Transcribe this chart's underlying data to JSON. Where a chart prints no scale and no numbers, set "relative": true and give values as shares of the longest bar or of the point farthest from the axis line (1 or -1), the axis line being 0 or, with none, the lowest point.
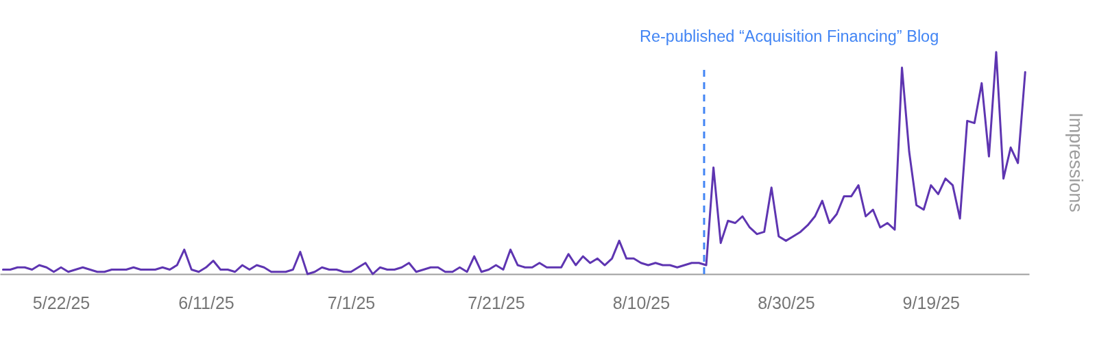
{
  "chart_data": {
    "type": "line",
    "x": [
      "2025-05-14",
      "2025-05-15",
      "2025-05-16",
      "2025-05-17",
      "2025-05-18",
      "2025-05-19",
      "2025-05-20",
      "2025-05-21",
      "2025-05-22",
      "2025-05-23",
      "2025-05-24",
      "2025-05-25",
      "2025-05-26",
      "2025-05-27",
      "2025-05-28",
      "2025-05-29",
      "2025-05-30",
      "2025-05-31",
      "2025-06-01",
      "2025-06-02",
      "2025-06-03",
      "2025-06-04",
      "2025-06-05",
      "2025-06-06",
      "2025-06-07",
      "2025-06-08",
      "2025-06-09",
      "2025-06-10",
      "2025-06-11",
      "2025-06-12",
      "2025-06-13",
      "2025-06-14",
      "2025-06-15",
      "2025-06-16",
      "2025-06-17",
      "2025-06-18",
      "2025-06-19",
      "2025-06-20",
      "2025-06-21",
      "2025-06-22",
      "2025-06-23",
      "2025-06-24",
      "2025-06-25",
      "2025-06-26",
      "2025-06-27",
      "2025-06-28",
      "2025-06-29",
      "2025-06-30",
      "2025-07-01",
      "2025-07-02",
      "2025-07-03",
      "2025-07-04",
      "2025-07-05",
      "2025-07-06",
      "2025-07-07",
      "2025-07-08",
      "2025-07-09",
      "2025-07-10",
      "2025-07-11",
      "2025-07-12",
      "2025-07-13",
      "2025-07-14",
      "2025-07-15",
      "2025-07-16",
      "2025-07-17",
      "2025-07-18",
      "2025-07-19",
      "2025-07-20",
      "2025-07-21",
      "2025-07-22",
      "2025-07-23",
      "2025-07-24",
      "2025-07-25",
      "2025-07-26",
      "2025-07-27",
      "2025-07-28",
      "2025-07-29",
      "2025-07-30",
      "2025-07-31",
      "2025-08-01",
      "2025-08-02",
      "2025-08-03",
      "2025-08-04",
      "2025-08-05",
      "2025-08-06",
      "2025-08-07",
      "2025-08-08",
      "2025-08-09",
      "2025-08-10",
      "2025-08-11",
      "2025-08-12",
      "2025-08-13",
      "2025-08-14",
      "2025-08-15",
      "2025-08-16",
      "2025-08-17",
      "2025-08-18",
      "2025-08-19",
      "2025-08-20",
      "2025-08-21",
      "2025-08-22",
      "2025-08-23",
      "2025-08-24",
      "2025-08-25",
      "2025-08-26",
      "2025-08-27",
      "2025-08-28",
      "2025-08-29",
      "2025-08-30",
      "2025-08-31",
      "2025-09-01",
      "2025-09-02",
      "2025-09-03",
      "2025-09-04",
      "2025-09-05",
      "2025-09-06",
      "2025-09-07",
      "2025-09-08",
      "2025-09-09",
      "2025-09-10",
      "2025-09-11",
      "2025-09-12",
      "2025-09-13",
      "2025-09-14",
      "2025-09-15",
      "2025-09-16",
      "2025-09-17",
      "2025-09-18",
      "2025-09-19",
      "2025-09-20",
      "2025-09-21",
      "2025-09-22",
      "2025-09-23",
      "2025-09-24",
      "2025-09-25",
      "2025-09-26",
      "2025-09-27",
      "2025-09-28",
      "2025-09-29",
      "2025-09-30",
      "2025-10-01",
      "2025-10-02"
    ],
    "series": [
      {
        "color": "#5e35b1",
        "values": [
          0.02,
          0.02,
          0.03,
          0.03,
          0.02,
          0.04,
          0.03,
          0.01,
          0.03,
          0.01,
          0.02,
          0.03,
          0.02,
          0.01,
          0.01,
          0.02,
          0.02,
          0.02,
          0.03,
          0.02,
          0.02,
          0.02,
          0.03,
          0.02,
          0.04,
          0.11,
          0.02,
          0.01,
          0.03,
          0.06,
          0.02,
          0.02,
          0.01,
          0.04,
          0.02,
          0.04,
          0.03,
          0.01,
          0.01,
          0.01,
          0.02,
          0.1,
          0,
          0.01,
          0.03,
          0.02,
          0.02,
          0.01,
          0.01,
          0.03,
          0.05,
          0,
          0.03,
          0.02,
          0.02,
          0.03,
          0.05,
          0.01,
          0.02,
          0.03,
          0.03,
          0.01,
          0.01,
          0.03,
          0.01,
          0.08,
          0.01,
          0.02,
          0.04,
          0.02,
          0.11,
          0.04,
          0.03,
          0.03,
          0.05,
          0.03,
          0.03,
          0.03,
          0.09,
          0.04,
          0.08,
          0.05,
          0.07,
          0.04,
          0.07,
          0.15,
          0.07,
          0.07,
          0.05,
          0.04,
          0.05,
          0.04,
          0.04,
          0.03,
          0.04,
          0.05,
          0.05,
          0.04,
          0.48,
          0.14,
          0.24,
          0.23,
          0.26,
          0.21,
          0.18,
          0.19,
          0.39,
          0.17,
          0.15,
          0.17,
          0.19,
          0.22,
          0.26,
          0.33,
          0.23,
          0.27,
          0.35,
          0.35,
          0.4,
          0.26,
          0.29,
          0.21,
          0.23,
          0.2,
          0.93,
          0.55,
          0.31,
          0.29,
          0.4,
          0.36,
          0.43,
          0.4,
          0.25,
          0.69,
          0.68,
          0.86,
          0.53,
          1,
          0.43,
          0.57,
          0.5,
          0.91
        ]
      }
    ],
    "relative": true,
    "ylabel": "Impressions",
    "xlim": [
      "2025-05-13T14:00",
      "2025-10-02T13:00"
    ],
    "xticks": [
      {
        "value": "2025-05-22",
        "label": "5/22/25"
      },
      {
        "value": "2025-06-11",
        "label": "6/11/25"
      },
      {
        "value": "2025-07-01",
        "label": "7/1/25"
      },
      {
        "value": "2025-07-21",
        "label": "7/21/25"
      },
      {
        "value": "2025-08-10",
        "label": "8/10/25"
      },
      {
        "value": "2025-08-30",
        "label": "8/30/25"
      },
      {
        "value": "2025-09-19",
        "label": "9/19/25"
      }
    ],
    "ref_lines": [
      {
        "axis": "x",
        "value": "2025-08-18T17:00",
        "label": "Re-published “Acquisition Financing” Blog",
        "color": "#4285f4",
        "line_style": "dashed"
      }
    ]
  }
}
